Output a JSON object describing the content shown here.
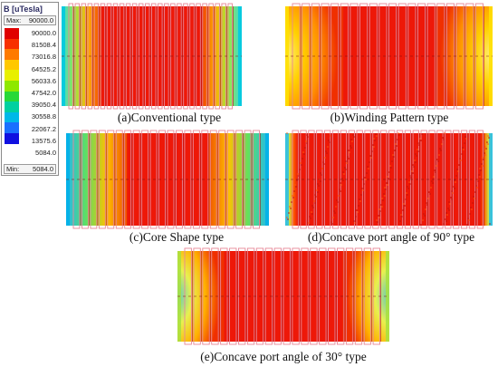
{
  "legend": {
    "title": "B [uTesla]",
    "max_label": "Max:",
    "max_value": "90000.0",
    "min_label": "Min:",
    "min_value": "5084.0",
    "ticks": [
      "90000.0",
      "81508.4",
      "73016.8",
      "64525.2",
      "56033.6",
      "47542.0",
      "39050.4",
      "30558.8",
      "22067.2",
      "13575.6",
      "5084.0"
    ],
    "colors": [
      "#e00000",
      "#f83000",
      "#ff7a00",
      "#ffc800",
      "#e8f000",
      "#8ee800",
      "#28d838",
      "#00d0a0",
      "#00b8e8",
      "#1a70ff",
      "#1010e0"
    ]
  },
  "panels": {
    "a": {
      "caption": "(a)Conventional type",
      "edge_color": "#00c8e0"
    },
    "b": {
      "caption": "(b)Winding Pattern type",
      "edge_color": "#ffe000"
    },
    "c": {
      "caption": "(c)Core Shape type",
      "edge_color": "#00b0e8"
    },
    "d": {
      "caption": "(d)Concave port angle of 90° type",
      "edge_color": "#30c0e0"
    },
    "e": {
      "caption": "(e)Concave port angle of 30° type",
      "edge_color": "#a8e040"
    }
  },
  "colors": {
    "field_core": "#ee1808",
    "slot_line": "#b01010",
    "coil_outline": "#e88898"
  }
}
